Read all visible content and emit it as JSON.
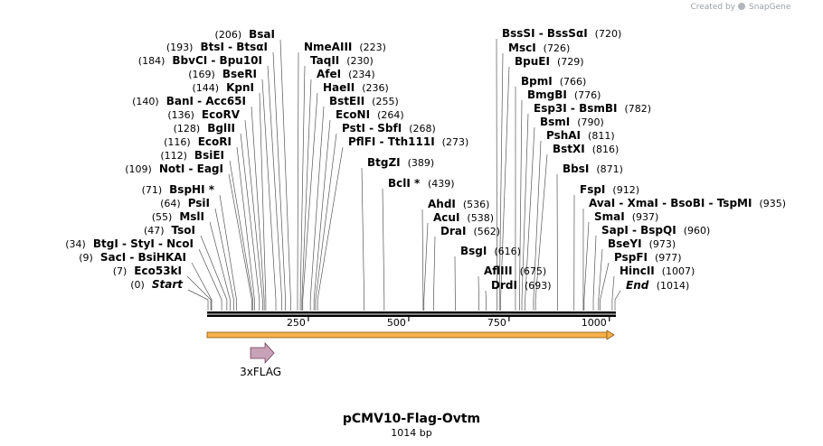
{
  "credit": {
    "text": "Created by",
    "brand": "SnapGene"
  },
  "map": {
    "name": "pCMV10-Flag-Ovtm",
    "length_label": "1014 bp",
    "total_bp": 1014
  },
  "ruler": {
    "ticks": [
      250,
      500,
      750,
      1000
    ]
  },
  "features": [
    {
      "name": "3xFLAG",
      "start": 70,
      "end": 135,
      "color": "#c8a3b8"
    }
  ],
  "orf": {
    "color": "#f5b04a"
  },
  "sites": [
    {
      "text": "Start",
      "pos": 0,
      "num": "(0)",
      "side": "left",
      "style": "italic"
    },
    {
      "text": "Eco53kI",
      "pos": 7,
      "num": "(7)",
      "side": "left"
    },
    {
      "text": "SacI  - BsiHKAI",
      "pos": 9,
      "num": "(9)",
      "side": "left"
    },
    {
      "text": "BtgI  - StyI  - NcoI",
      "pos": 34,
      "num": "(34)",
      "side": "left"
    },
    {
      "text": "TsoI",
      "pos": 47,
      "num": "(47)",
      "side": "left"
    },
    {
      "text": "MslI",
      "pos": 55,
      "num": "(55)",
      "side": "left"
    },
    {
      "text": "PsiI",
      "pos": 64,
      "num": "(64)",
      "side": "left"
    },
    {
      "text": "BspHI *",
      "pos": 71,
      "num": "(71)",
      "side": "left"
    },
    {
      "text": "NotI  - EagI",
      "pos": 109,
      "num": "(109)",
      "side": "left"
    },
    {
      "text": "BsiEI",
      "pos": 112,
      "num": "(112)",
      "side": "left"
    },
    {
      "text": "EcoRI",
      "pos": 116,
      "num": "(116)",
      "side": "left"
    },
    {
      "text": "BglII",
      "pos": 128,
      "num": "(128)",
      "side": "left"
    },
    {
      "text": "EcoRV",
      "pos": 136,
      "num": "(136)",
      "side": "left"
    },
    {
      "text": "BanI  - Acc65I",
      "pos": 140,
      "num": "(140)",
      "side": "left"
    },
    {
      "text": "KpnI",
      "pos": 144,
      "num": "(144)",
      "side": "left"
    },
    {
      "text": "BseRI",
      "pos": 169,
      "num": "(169)",
      "side": "left"
    },
    {
      "text": "BbvCI  - Bpu10I",
      "pos": 184,
      "num": "(184)",
      "side": "left"
    },
    {
      "text": "BtsI  - BtsαI",
      "pos": 193,
      "num": "(193)",
      "side": "left"
    },
    {
      "text": "BsaI",
      "pos": 206,
      "num": "(206)",
      "side": "left"
    },
    {
      "text": "NmeAIII",
      "pos": 223,
      "num": "(223)",
      "side": "right"
    },
    {
      "text": "TaqII",
      "pos": 230,
      "num": "(230)",
      "side": "right"
    },
    {
      "text": "AfeI",
      "pos": 234,
      "num": "(234)",
      "side": "right"
    },
    {
      "text": "HaeII",
      "pos": 236,
      "num": "(236)",
      "side": "right"
    },
    {
      "text": "BstEII",
      "pos": 255,
      "num": "(255)",
      "side": "right"
    },
    {
      "text": "EcoNI",
      "pos": 264,
      "num": "(264)",
      "side": "right"
    },
    {
      "text": "PstI  - SbfI",
      "pos": 268,
      "num": "(268)",
      "side": "right"
    },
    {
      "text": "PflFI  - Tth111I",
      "pos": 273,
      "num": "(273)",
      "side": "right"
    },
    {
      "text": "BtgZI",
      "pos": 389,
      "num": "(389)",
      "side": "right"
    },
    {
      "text": "BclI *",
      "pos": 439,
      "num": "(439)",
      "side": "right"
    },
    {
      "text": "AhdI",
      "pos": 536,
      "num": "(536)",
      "side": "right"
    },
    {
      "text": "AcuI",
      "pos": 538,
      "num": "(538)",
      "side": "right"
    },
    {
      "text": "DraI",
      "pos": 562,
      "num": "(562)",
      "side": "right"
    },
    {
      "text": "BsgI",
      "pos": 616,
      "num": "(616)",
      "side": "right"
    },
    {
      "text": "AflIII",
      "pos": 675,
      "num": "(675)",
      "side": "right"
    },
    {
      "text": "DrdI",
      "pos": 693,
      "num": "(693)",
      "side": "right"
    },
    {
      "text": "BssSI  - BssSαI",
      "pos": 720,
      "num": "(720)",
      "side": "right"
    },
    {
      "text": "MscI",
      "pos": 726,
      "num": "(726)",
      "side": "right"
    },
    {
      "text": "BpuEI",
      "pos": 729,
      "num": "(729)",
      "side": "right"
    },
    {
      "text": "BpmI",
      "pos": 766,
      "num": "(766)",
      "side": "right"
    },
    {
      "text": "BmgBI",
      "pos": 776,
      "num": "(776)",
      "side": "right"
    },
    {
      "text": "Esp3I  - BsmBI",
      "pos": 782,
      "num": "(782)",
      "side": "right"
    },
    {
      "text": "BsmI",
      "pos": 790,
      "num": "(790)",
      "side": "right"
    },
    {
      "text": "PshAI",
      "pos": 811,
      "num": "(811)",
      "side": "right"
    },
    {
      "text": "BstXI",
      "pos": 816,
      "num": "(816)",
      "side": "right"
    },
    {
      "text": "BbsI",
      "pos": 871,
      "num": "(871)",
      "side": "right"
    },
    {
      "text": "FspI",
      "pos": 912,
      "num": "(912)",
      "side": "right"
    },
    {
      "text": "AvaI  - XmaI  - BsoBI  - TspMI",
      "pos": 935,
      "num": "(935)",
      "side": "right"
    },
    {
      "text": "SmaI",
      "pos": 937,
      "num": "(937)",
      "side": "right"
    },
    {
      "text": "SapI  - BspQI",
      "pos": 960,
      "num": "(960)",
      "side": "right"
    },
    {
      "text": "BseYI",
      "pos": 973,
      "num": "(973)",
      "side": "right"
    },
    {
      "text": "PspFI",
      "pos": 977,
      "num": "(977)",
      "side": "right"
    },
    {
      "text": "HincII",
      "pos": 1007,
      "num": "(1007)",
      "side": "right"
    },
    {
      "text": "End",
      "pos": 1014,
      "num": "(1014)",
      "side": "right",
      "style": "italic"
    }
  ]
}
